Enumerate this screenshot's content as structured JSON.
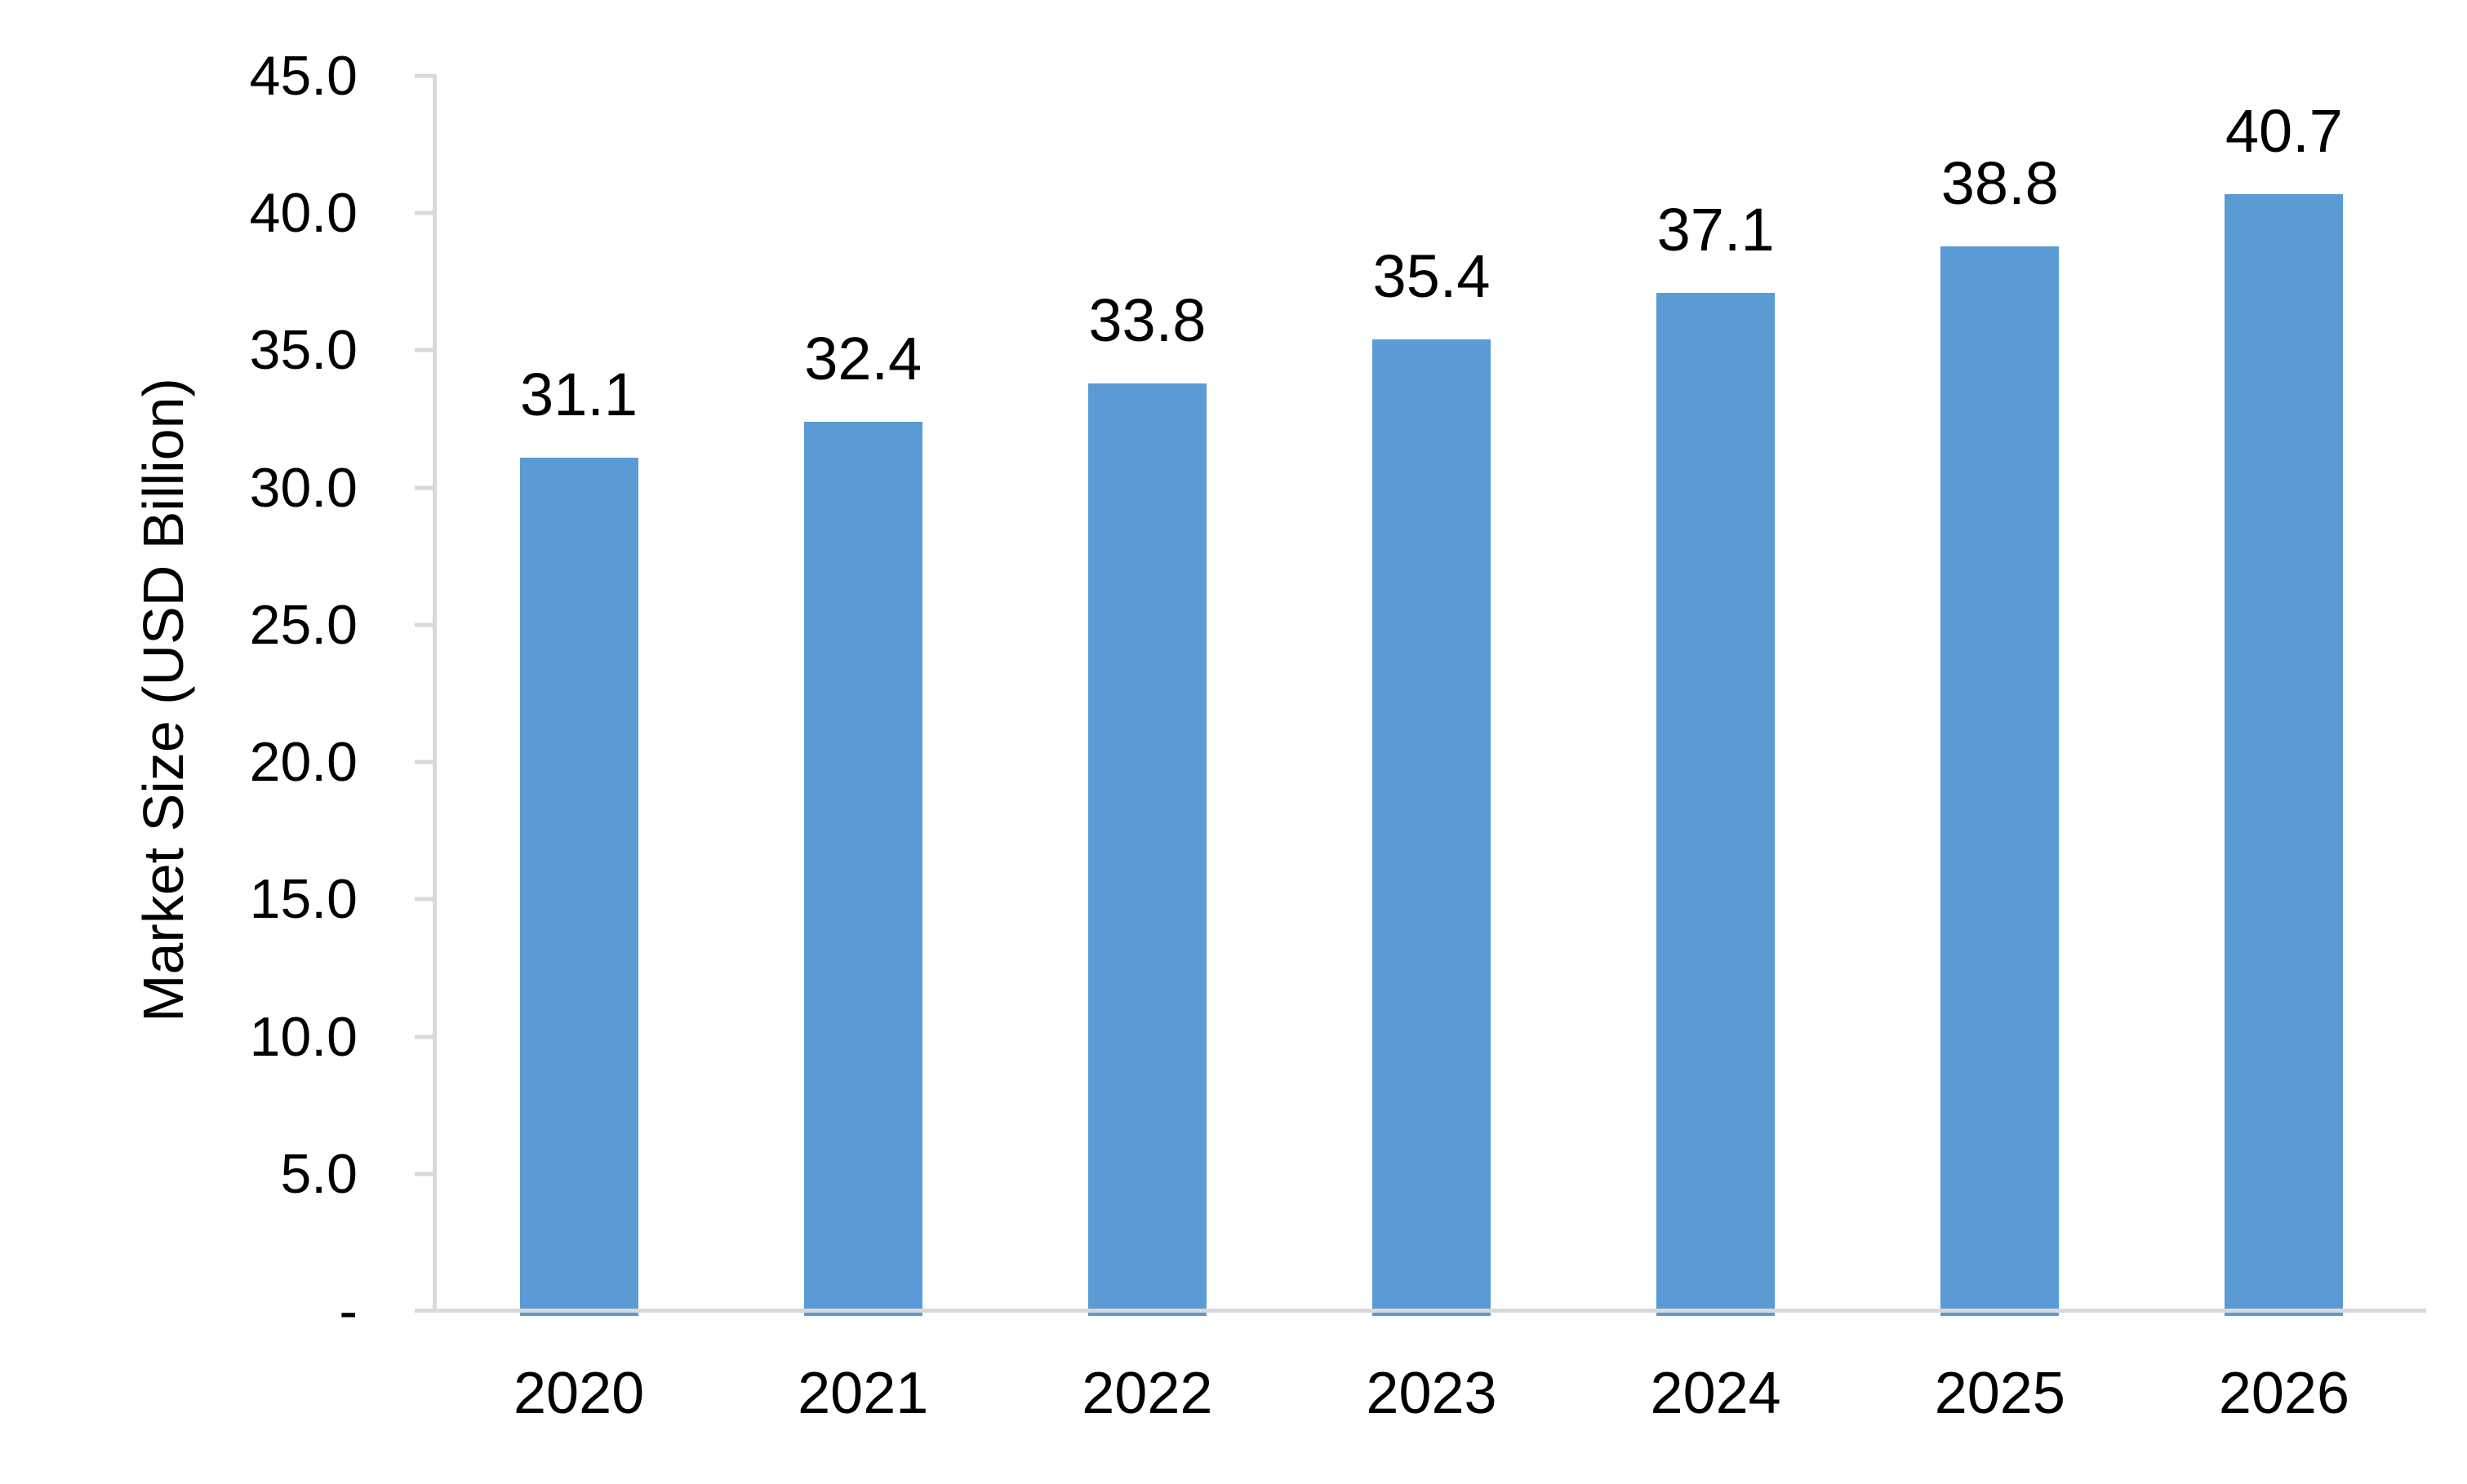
{
  "chart_data": {
    "type": "bar",
    "title": "",
    "categories": [
      "2020",
      "2021",
      "2022",
      "2023",
      "2024",
      "2025",
      "2026"
    ],
    "values": [
      31.1,
      32.4,
      33.8,
      35.4,
      37.1,
      38.8,
      40.7
    ],
    "data_labels": [
      "31.1",
      "32.4",
      "33.8",
      "35.4",
      "37.1",
      "38.8",
      "40.7"
    ],
    "xlabel": "",
    "ylabel": "Market Size (USD Billion)",
    "ylim": [
      0,
      45
    ],
    "ytick_interval": 5,
    "yticks": [
      {
        "value": 45,
        "label": "45.0"
      },
      {
        "value": 40,
        "label": "40.0"
      },
      {
        "value": 35,
        "label": "35.0"
      },
      {
        "value": 30,
        "label": "30.0"
      },
      {
        "value": 25,
        "label": "25.0"
      },
      {
        "value": 20,
        "label": "20.0"
      },
      {
        "value": 15,
        "label": "15.0"
      },
      {
        "value": 10,
        "label": "10.0"
      },
      {
        "value": 5,
        "label": "5.0"
      },
      {
        "value": 0,
        "label": "-"
      }
    ],
    "grid": false,
    "legend": "none",
    "bar_color": "#5B9BD5",
    "axis_color": "#D9D9D9",
    "text_color": "#000000",
    "background_color": "#FFFFFF"
  }
}
